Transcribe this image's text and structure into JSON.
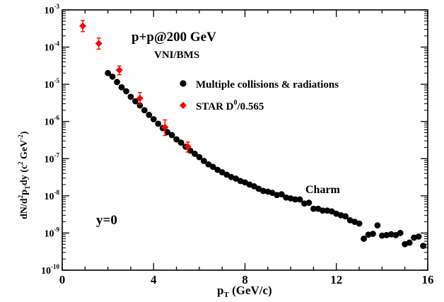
{
  "chart_data": {
    "type": "scatter",
    "title": "p+p@200 GeV",
    "subtitle": "VNI/BMS",
    "x_label": {
      "main": "p",
      "sub": "T",
      "tail": " (GeV/c)"
    },
    "y_label": {
      "parts": [
        "dN/d",
        "2",
        "p",
        "T",
        "dy (c",
        "2",
        " GeV",
        "-2",
        ")"
      ]
    },
    "xlim": [
      0,
      16
    ],
    "ylim_log10": [
      -10,
      -3
    ],
    "x_ticks": [
      "0",
      "4",
      "8",
      "12",
      "16"
    ],
    "y_ticks": [
      {
        "base": "10",
        "exp": "-10"
      },
      {
        "base": "10",
        "exp": "-9"
      },
      {
        "base": "10",
        "exp": "-8"
      },
      {
        "base": "10",
        "exp": "-7"
      },
      {
        "base": "10",
        "exp": "-6"
      },
      {
        "base": "10",
        "exp": "-5"
      },
      {
        "base": "10",
        "exp": "-4"
      },
      {
        "base": "10",
        "exp": "-3"
      }
    ],
    "annotations": {
      "charm": "Charm",
      "rapidity": "y=0"
    },
    "legend": [
      {
        "text": "Multiple collisions & radiations"
      },
      {
        "text_parts": [
          "STAR   D",
          "0",
          "/0.565"
        ]
      }
    ],
    "colors": {
      "sim": "#000000",
      "star": "#ff0000"
    },
    "series": [
      {
        "name": "Multiple collisions & radiations",
        "marker": "circle",
        "x": [
          2.0,
          2.2,
          2.4,
          2.6,
          2.8,
          3.0,
          3.2,
          3.4,
          3.6,
          3.8,
          4.0,
          4.2,
          4.4,
          4.6,
          4.8,
          5.0,
          5.2,
          5.4,
          5.6,
          5.8,
          6.0,
          6.2,
          6.4,
          6.6,
          6.8,
          7.0,
          7.2,
          7.4,
          7.6,
          7.8,
          8.0,
          8.2,
          8.4,
          8.6,
          8.8,
          9.0,
          9.2,
          9.4,
          9.6,
          9.8,
          10.0,
          10.2,
          10.4,
          10.6,
          10.8,
          11.0,
          11.2,
          11.4,
          11.6,
          11.8,
          12.0,
          12.2,
          12.4,
          12.6,
          12.8,
          13.0,
          13.2,
          13.4,
          13.6,
          13.8,
          14.0,
          14.2,
          14.4,
          14.6,
          14.8,
          15.0,
          15.2,
          15.4,
          15.6,
          15.8
        ],
        "y": [
          2e-05,
          1.6e-05,
          1.15e-05,
          8.3e-06,
          6.5e-06,
          4.6e-06,
          3.5e-06,
          2.7e-06,
          2e-06,
          1.5e-06,
          1.15e-06,
          8.7e-07,
          6.6e-07,
          5.2e-07,
          4.3e-07,
          3.3e-07,
          2.7e-07,
          2.1e-07,
          1.65e-07,
          1.35e-07,
          1.1e-07,
          8.7e-08,
          7e-08,
          6e-08,
          5e-08,
          4.3e-08,
          3.7e-08,
          3.2e-08,
          2.9e-08,
          2.5e-08,
          2.3e-08,
          2e-08,
          1.8e-08,
          1.55e-08,
          1.35e-08,
          1.3e-08,
          1.2e-08,
          1.05e-08,
          1.1e-08,
          9e-09,
          8.5e-09,
          8e-09,
          8e-09,
          6.2e-09,
          6.5e-09,
          4.5e-09,
          4.5e-09,
          4e-09,
          4e-09,
          3.8e-09,
          3.3e-09,
          3e-09,
          2.8e-09,
          2.2e-09,
          2e-09,
          1.8e-09,
          7e-10,
          9e-10,
          9.5e-10,
          1.6e-09,
          8.5e-10,
          8.8e-10,
          9.2e-10,
          8.8e-10,
          1e-09,
          5e-10,
          5.5e-10,
          7.5e-10,
          8e-10,
          4.5e-10
        ]
      },
      {
        "name": "STAR   D0/0.565",
        "marker": "diamond",
        "x": [
          0.9,
          1.6,
          2.5,
          3.4,
          4.5,
          5.5
        ],
        "y": [
          0.00037,
          0.000125,
          2.4e-05,
          4.2e-06,
          7e-07,
          2.1e-07
        ],
        "y_err_low": [
          0.00026,
          8.8e-05,
          1.8e-05,
          2.9e-06,
          4.2e-07,
          1.5e-07
        ],
        "y_err_high": [
          0.00052,
          0.000175,
          3.1e-05,
          6e-06,
          1.1e-06,
          2.8e-07
        ]
      }
    ]
  }
}
